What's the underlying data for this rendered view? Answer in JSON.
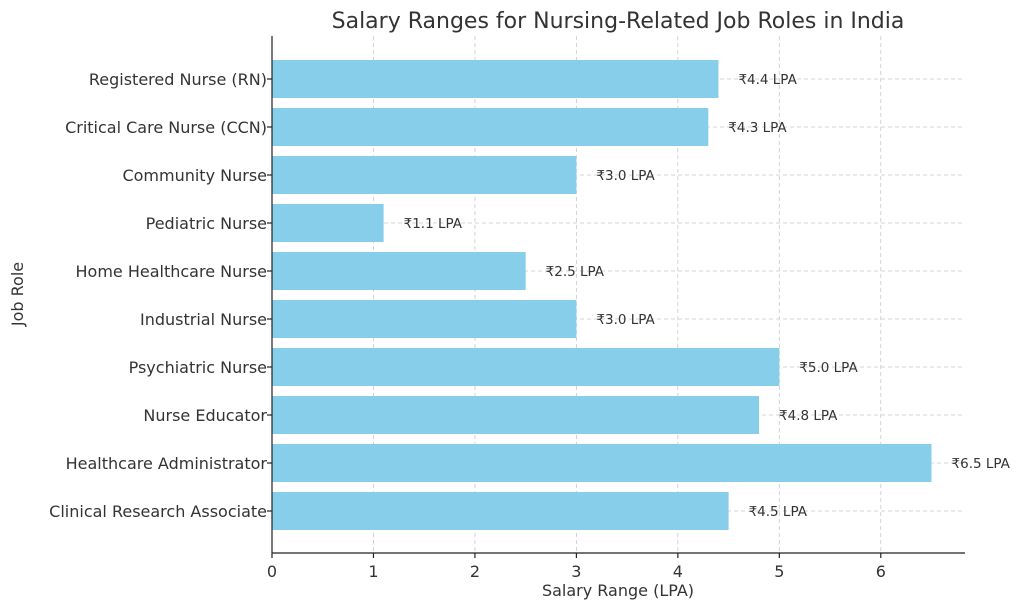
{
  "chart_data": {
    "type": "bar",
    "orientation": "horizontal",
    "title": "Salary Ranges for Nursing-Related Job Roles in India",
    "xlabel": "Salary Range (LPA)",
    "ylabel": "Job Role",
    "categories": [
      "Registered Nurse (RN)",
      "Critical Care Nurse (CCN)",
      "Community Nurse",
      "Pediatric Nurse",
      "Home Healthcare Nurse",
      "Industrial Nurse",
      "Psychiatric Nurse",
      "Nurse Educator",
      "Healthcare Administrator",
      "Clinical Research Associate"
    ],
    "values": [
      4.4,
      4.3,
      3.0,
      1.1,
      2.5,
      3.0,
      5.0,
      4.8,
      6.5,
      4.5
    ],
    "data_labels": [
      "₹4.4 LPA",
      "₹4.3 LPA",
      "₹3.0 LPA",
      "₹1.1 LPA",
      "₹2.5 LPA",
      "₹3.0 LPA",
      "₹5.0 LPA",
      "₹4.8 LPA",
      "₹6.5 LPA",
      "₹4.5 LPA"
    ],
    "xlim": [
      0,
      6.83
    ],
    "xticks": [
      0,
      1,
      2,
      3,
      4,
      5,
      6
    ],
    "grid": true,
    "bar_color": "#87ceeb"
  }
}
